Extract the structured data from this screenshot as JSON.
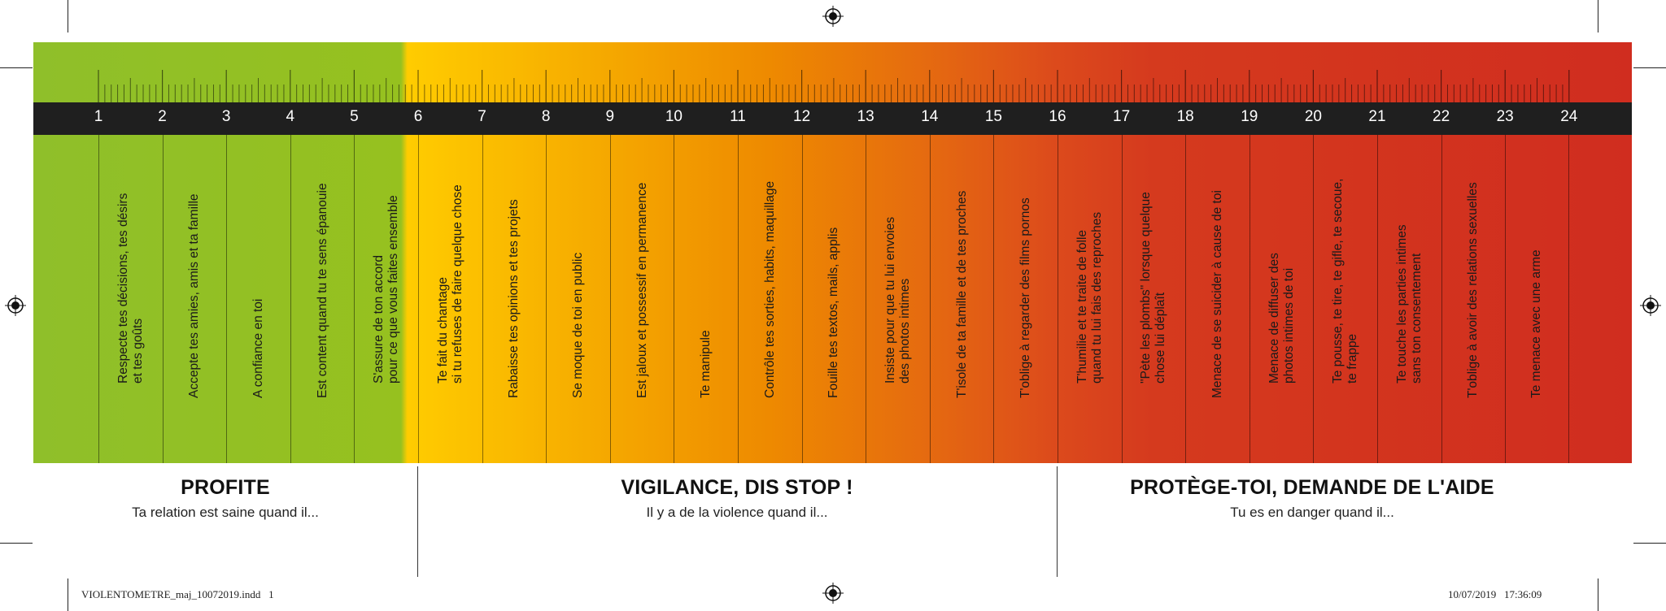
{
  "scale_numbers": [
    "1",
    "2",
    "3",
    "4",
    "5",
    "6",
    "7",
    "8",
    "9",
    "10",
    "11",
    "12",
    "13",
    "14",
    "15",
    "16",
    "17",
    "18",
    "19",
    "20",
    "21",
    "22",
    "23",
    "24"
  ],
  "items": [
    "Respecte tes décisions, tes désirs\net tes goûts",
    "Accepte tes amies, amis et ta famille",
    "A confiance en toi",
    "Est content quand tu te sens épanouie",
    "S'assure de ton accord\npour ce que vous faites ensemble",
    "Te fait du chantage\nsi tu refuses de faire quelque chose",
    "Rabaisse tes opinions et tes projets",
    "Se moque de toi en public",
    "Est jaloux et possessif en permanence",
    "Te manipule",
    "Contrôle tes sorties, habits, maquillage",
    "Fouille tes textos, mails, applis",
    "Insiste pour que tu lui envoies\ndes photos intimes",
    "T'isole de ta famille et de tes proches",
    "T'oblige à regarder des films pornos",
    "T'humilie et te traite de folle\nquand tu lui fais des reproches",
    "\"Pète les plombs\" lorsque quelque\nchose lui déplaît",
    "Menace de se suicider à cause de toi",
    "Menace de diffuser des\nphotos intimes de toi",
    "Te pousse, te tire, te gifle, te secoue,\nte frappe",
    "Te touche les parties intimes\nsans ton consentement",
    "T'oblige à avoir des relations sexuelles",
    "Te menace avec une arme"
  ],
  "zones": [
    {
      "title": "PROFITE",
      "subtitle": "Ta relation est saine quand il..."
    },
    {
      "title": "VIGILANCE, DIS STOP !",
      "subtitle": "Il y a de la violence quand il..."
    },
    {
      "title": "PROTÈGE-TOI, DEMANDE DE L'AIDE",
      "subtitle": "Tu es en danger quand il..."
    }
  ],
  "slug": {
    "file": "VIOLENTOMETRE_maj_10072019.indd   1",
    "datetime": "10/07/2019   17:36:09"
  },
  "colors": {
    "green": "#96c11f",
    "yellow": "#ffcc00",
    "orange": "#ee8a00",
    "red": "#d02d1f",
    "bar": "#1f1f1f"
  }
}
